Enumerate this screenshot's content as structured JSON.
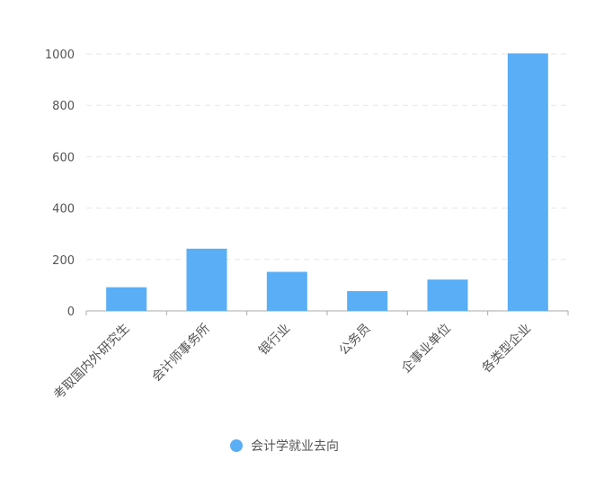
{
  "chart_data": {
    "type": "bar",
    "categories": [
      "考取国内外研究生",
      "会计师事务所",
      "银行业",
      "公务员",
      "企事业单位",
      "各类型企业"
    ],
    "series": [
      {
        "name": "会计学就业去向",
        "values": [
          92,
          242,
          152,
          77,
          122,
          1002
        ],
        "color": "#5aaef6"
      }
    ],
    "ylim": [
      0,
      1000
    ],
    "yticks": [
      0,
      200,
      400,
      600,
      800,
      1000
    ],
    "grid": true,
    "legend_position": "bottom",
    "colors": {
      "bar": "#5aaef6",
      "axis": "#aaaaaa",
      "grid": "#e6e6e6",
      "text": "#555555"
    }
  }
}
